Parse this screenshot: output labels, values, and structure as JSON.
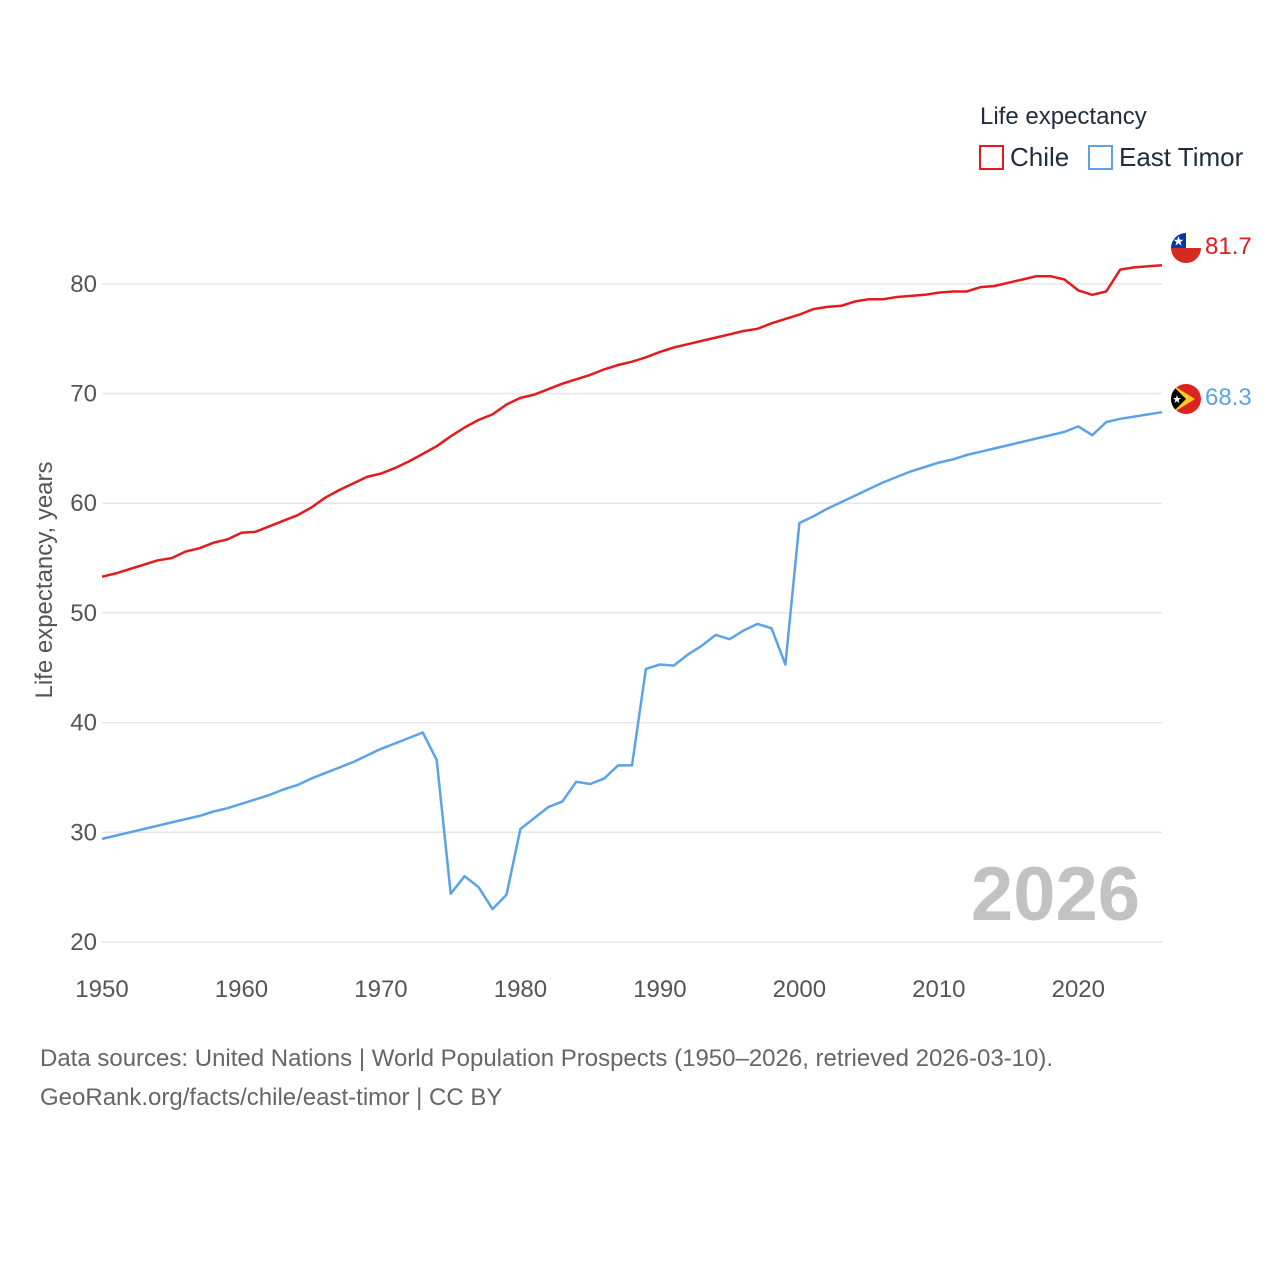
{
  "legend": {
    "title": "Life expectancy",
    "entries": [
      "Chile",
      "East Timor"
    ]
  },
  "watermark_year": "2026",
  "footer": {
    "line1": "Data sources: United Nations | World Population Prospects (1950–2026, retrieved 2026-03-10).",
    "line2": "GeoRank.org/facts/chile/east-timor | CC BY"
  },
  "icons": {
    "chile": "chile-flag-icon",
    "east_timor": "east-timor-flag-icon"
  },
  "chart_data": {
    "type": "line",
    "title": "Life expectancy",
    "xlabel": "",
    "ylabel": "Life expectancy, years",
    "xlim": [
      1950,
      2026
    ],
    "ylim": [
      20,
      85
    ],
    "xticks": [
      1950,
      1960,
      1970,
      1980,
      1990,
      2000,
      2010,
      2020
    ],
    "yticks": [
      20,
      30,
      40,
      50,
      60,
      70,
      80
    ],
    "grid": true,
    "legend_position": "top-right",
    "x": [
      1950,
      1951,
      1952,
      1953,
      1954,
      1955,
      1956,
      1957,
      1958,
      1959,
      1960,
      1961,
      1962,
      1963,
      1964,
      1965,
      1966,
      1967,
      1968,
      1969,
      1970,
      1971,
      1972,
      1973,
      1974,
      1975,
      1976,
      1977,
      1978,
      1979,
      1980,
      1981,
      1982,
      1983,
      1984,
      1985,
      1986,
      1987,
      1988,
      1989,
      1990,
      1991,
      1992,
      1993,
      1994,
      1995,
      1996,
      1997,
      1998,
      1999,
      2000,
      2001,
      2002,
      2003,
      2004,
      2005,
      2006,
      2007,
      2008,
      2009,
      2010,
      2011,
      2012,
      2013,
      2014,
      2015,
      2016,
      2017,
      2018,
      2019,
      2020,
      2021,
      2022,
      2023,
      2024,
      2025,
      2026
    ],
    "series": [
      {
        "name": "Chile",
        "color": "#e41a1c",
        "end_label": "81.7",
        "values": [
          53.3,
          53.6,
          54.0,
          54.4,
          54.8,
          55.0,
          55.6,
          55.9,
          56.4,
          56.7,
          57.3,
          57.4,
          57.9,
          58.4,
          58.9,
          59.6,
          60.5,
          61.2,
          61.8,
          62.4,
          62.7,
          63.2,
          63.8,
          64.5,
          65.2,
          66.1,
          66.9,
          67.6,
          68.1,
          69.0,
          69.6,
          69.9,
          70.4,
          70.9,
          71.3,
          71.7,
          72.2,
          72.6,
          72.9,
          73.3,
          73.8,
          74.2,
          74.5,
          74.8,
          75.1,
          75.4,
          75.7,
          75.9,
          76.4,
          76.8,
          77.2,
          77.7,
          77.9,
          78.0,
          78.4,
          78.6,
          78.6,
          78.8,
          78.9,
          79.0,
          79.2,
          79.3,
          79.3,
          79.7,
          79.8,
          80.1,
          80.4,
          80.7,
          80.7,
          80.4,
          79.4,
          79.0,
          79.3,
          81.3,
          81.5,
          81.6,
          81.7
        ]
      },
      {
        "name": "East Timor",
        "color": "#5ba3e6",
        "end_label": "68.3",
        "values": [
          29.4,
          29.7,
          30.0,
          30.3,
          30.6,
          30.9,
          31.2,
          31.5,
          31.9,
          32.2,
          32.6,
          33.0,
          33.4,
          33.9,
          34.3,
          34.9,
          35.4,
          35.9,
          36.4,
          37.0,
          37.6,
          38.1,
          38.6,
          39.1,
          36.6,
          24.4,
          26.0,
          25.0,
          23.0,
          24.3,
          30.3,
          31.3,
          32.3,
          32.8,
          34.6,
          34.4,
          34.9,
          36.1,
          36.1,
          44.9,
          45.3,
          45.2,
          46.2,
          47.0,
          48.0,
          47.6,
          48.4,
          49.0,
          48.6,
          45.3,
          58.2,
          58.8,
          59.5,
          60.1,
          60.7,
          61.3,
          61.9,
          62.4,
          62.9,
          63.3,
          63.7,
          64.0,
          64.4,
          64.7,
          65.0,
          65.3,
          65.6,
          65.9,
          66.2,
          66.5,
          67.0,
          66.2,
          67.4,
          67.7,
          67.9,
          68.1,
          68.3
        ]
      }
    ]
  }
}
